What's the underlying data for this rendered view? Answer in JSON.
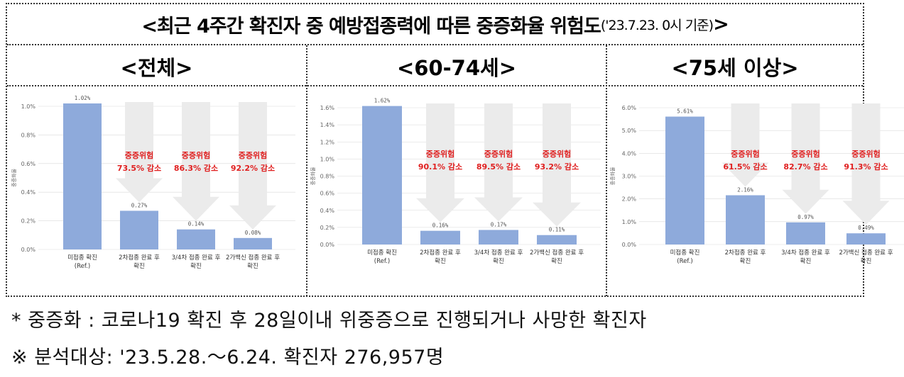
{
  "header": {
    "title": "<최근 4주간 확진자 중 예방접종력에 따른 중증화율 위험도",
    "subtitle": "('23.7.23. 0시 기준)",
    "title_end": ">"
  },
  "colors": {
    "bar": "#8eaadb",
    "arrow": "#ebebeb",
    "annotation": "#e02020",
    "axis_text": "#666666",
    "grid": "#d9d9d9"
  },
  "chart_data": [
    {
      "type": "bar",
      "panel_title": "<전체>",
      "ylabel": "중증화율",
      "ylim": [
        0,
        1.0
      ],
      "yticks": [
        "0.0%",
        "0.2%",
        "0.4%",
        "0.6%",
        "0.8%",
        "1.0%"
      ],
      "categories": [
        [
          "미접종 확진",
          "(Ref.)"
        ],
        [
          "2차접종 완료 후",
          "확진"
        ],
        [
          "3/4차 접종 완료 후",
          "확진"
        ],
        [
          "2가백신 접종 완료 후",
          "확진"
        ]
      ],
      "values": [
        1.02,
        0.27,
        0.14,
        0.08
      ],
      "value_labels": [
        "1.02%",
        "0.27%",
        "0.14%",
        "0.08%"
      ],
      "annotations": [
        {
          "title": "중증위험",
          "text": "73.5% 감소"
        },
        {
          "title": "중증위험",
          "text": "86.3% 감소"
        },
        {
          "title": "중증위험",
          "text": "92.2% 감소"
        }
      ]
    },
    {
      "type": "bar",
      "panel_title": "<60-74세>",
      "ylabel": "중증화율",
      "ylim": [
        0,
        1.6
      ],
      "yticks": [
        "0.0%",
        "0.2%",
        "0.4%",
        "0.6%",
        "0.8%",
        "1.0%",
        "1.2%",
        "1.4%",
        "1.6%"
      ],
      "categories": [
        [
          "미접종 확진",
          "(Ref.)"
        ],
        [
          "2차접종 완료 후",
          "확진"
        ],
        [
          "3/4차 접종 완료 후",
          "확진"
        ],
        [
          "2가백신 접종 완료 후",
          "확진"
        ]
      ],
      "values": [
        1.62,
        0.16,
        0.17,
        0.11
      ],
      "value_labels": [
        "1.62%",
        "0.16%",
        "0.17%",
        "0.11%"
      ],
      "annotations": [
        {
          "title": "중증위험",
          "text": "90.1% 감소"
        },
        {
          "title": "중증위험",
          "text": "89.5% 감소"
        },
        {
          "title": "중증위험",
          "text": "93.2% 감소"
        }
      ]
    },
    {
      "type": "bar",
      "panel_title": "<75세 이상>",
      "ylabel": "중증화율",
      "ylim": [
        0,
        6.0
      ],
      "yticks": [
        "0.0%",
        "1.0%",
        "2.0%",
        "3.0%",
        "4.0%",
        "5.0%",
        "6.0%"
      ],
      "categories": [
        [
          "미접종 확진",
          "(Ref.)"
        ],
        [
          "2차접종 완료 후",
          "확진"
        ],
        [
          "3/4차 접종 완료 후",
          "확진"
        ],
        [
          "2가백신 접종 완료 후",
          "확진"
        ]
      ],
      "values": [
        5.61,
        2.16,
        0.97,
        0.49
      ],
      "value_labels": [
        "5.61%",
        "2.16%",
        "0.97%",
        "0.49%"
      ],
      "annotations": [
        {
          "title": "중증위험",
          "text": "61.5% 감소"
        },
        {
          "title": "중증위험",
          "text": "82.7% 감소"
        },
        {
          "title": "중증위험",
          "text": "91.3% 감소"
        }
      ]
    }
  ],
  "footnotes": [
    "* 중증화 : 코로나19 확진 후 28일이내 위중증으로 진행되거나 사망한 확진자",
    "※  분석대상: '23.5.28.～6.24. 확진자 276,957명"
  ]
}
